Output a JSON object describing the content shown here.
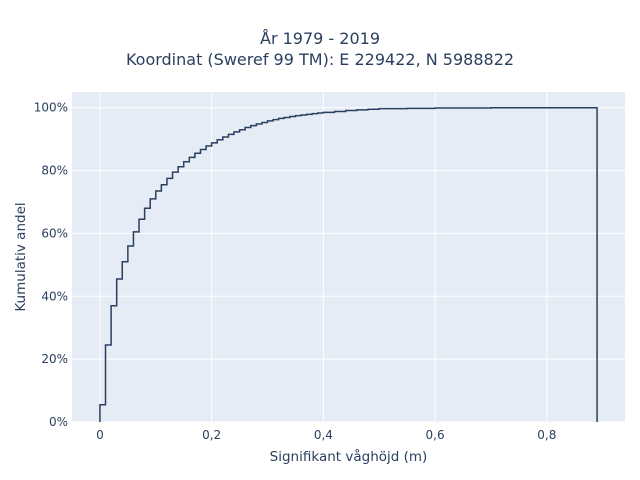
{
  "chart_data": {
    "type": "line",
    "line_shape": "step",
    "title_line1": "År 1979 - 2019",
    "title_line2": "Koordinat (Sweref 99 TM): E 229422, N 5988822",
    "xlabel": "Signifikant våghöjd (m)",
    "ylabel": "Kumulativ andel",
    "xlim": [
      -0.05,
      0.94
    ],
    "ylim": [
      0,
      1.05
    ],
    "x_ticks": [
      0,
      0.2,
      0.4,
      0.6,
      0.8
    ],
    "x_tick_labels": [
      "0",
      "0,2",
      "0,4",
      "0,6",
      "0,8"
    ],
    "y_ticks": [
      0,
      0.2,
      0.4,
      0.6,
      0.8,
      1.0
    ],
    "y_tick_labels": [
      "0%",
      "20%",
      "40%",
      "60%",
      "80%",
      "100%"
    ],
    "grid": true,
    "line_color": "#2a3f5f",
    "plot_bg": "#e5ecf6",
    "series": [
      {
        "x": [
          0,
          0.01,
          0.02,
          0.03,
          0.04,
          0.05,
          0.06,
          0.07,
          0.08,
          0.09,
          0.1,
          0.11,
          0.12,
          0.13,
          0.14,
          0.15,
          0.16,
          0.17,
          0.18,
          0.19,
          0.2,
          0.21,
          0.22,
          0.23,
          0.24,
          0.25,
          0.26,
          0.27,
          0.28,
          0.29,
          0.3,
          0.31,
          0.32,
          0.33,
          0.34,
          0.35,
          0.36,
          0.37,
          0.38,
          0.39,
          0.4,
          0.42,
          0.44,
          0.46,
          0.48,
          0.5,
          0.55,
          0.6,
          0.7,
          0.89
        ],
        "y": [
          0.055,
          0.245,
          0.37,
          0.455,
          0.51,
          0.56,
          0.605,
          0.645,
          0.68,
          0.71,
          0.735,
          0.755,
          0.775,
          0.795,
          0.812,
          0.828,
          0.842,
          0.855,
          0.867,
          0.878,
          0.888,
          0.898,
          0.907,
          0.915,
          0.923,
          0.93,
          0.937,
          0.943,
          0.948,
          0.953,
          0.958,
          0.962,
          0.966,
          0.969,
          0.972,
          0.975,
          0.977,
          0.979,
          0.981,
          0.983,
          0.985,
          0.988,
          0.991,
          0.993,
          0.995,
          0.997,
          0.998,
          0.999,
          1.0,
          1.0
        ]
      }
    ]
  }
}
